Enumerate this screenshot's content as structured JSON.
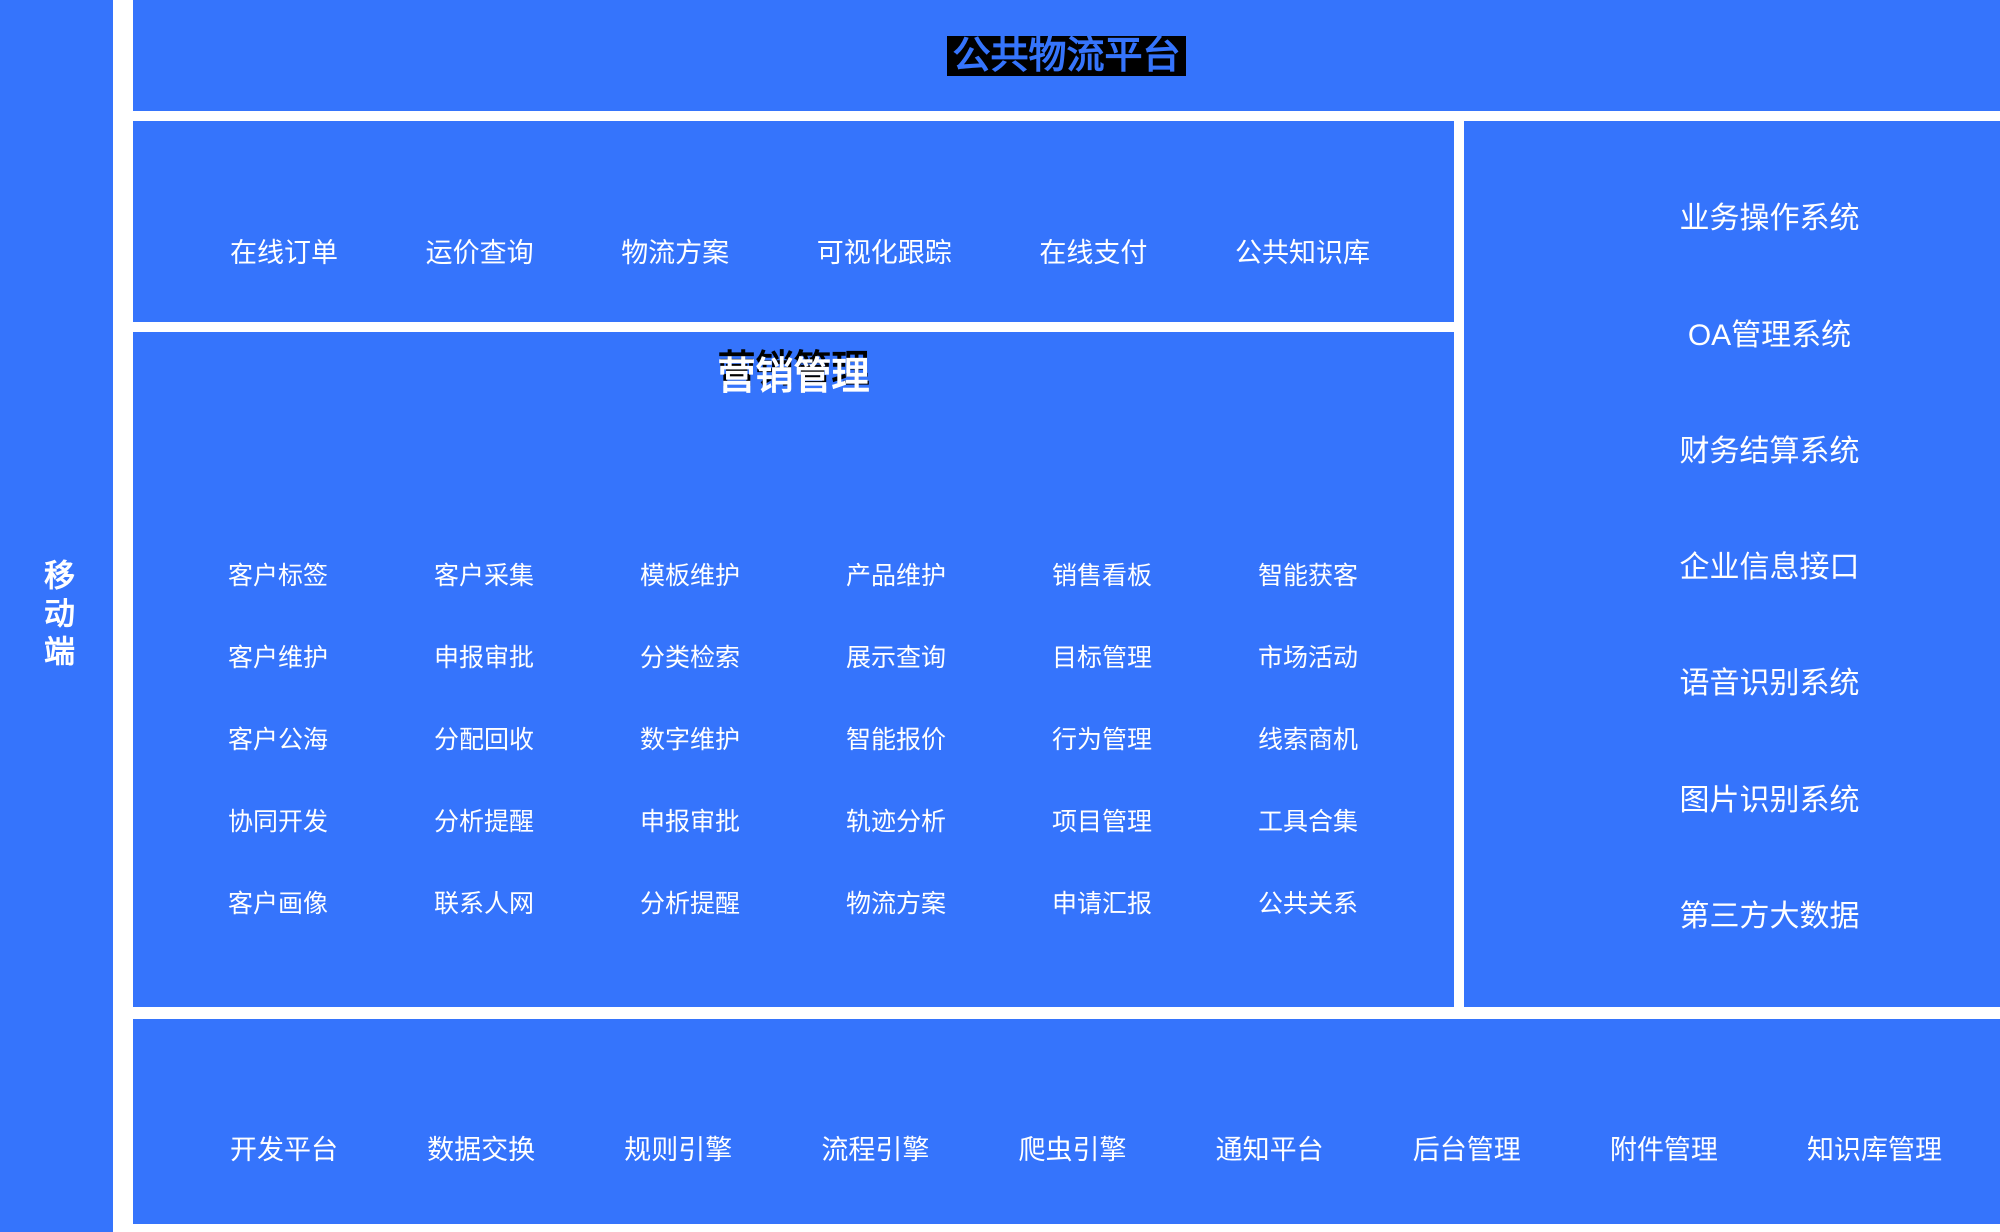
{
  "colors": {
    "panel_blue": "#3574fc",
    "page_background": "#ffffff",
    "top_title_background": "#000000",
    "text": "#ffffff",
    "marketing_title_shadow": "#000000"
  },
  "sidebar": {
    "label": "移动端"
  },
  "top_bar": {
    "title": "公共物流平台"
  },
  "services_row": {
    "items": [
      "在线订单",
      "运价查询",
      "物流方案",
      "可视化跟踪",
      "在线支付",
      "公共知识库"
    ]
  },
  "marketing_panel": {
    "title": "营销管理",
    "grid": [
      [
        "客户标签",
        "客户采集",
        "模板维护",
        "产品维护",
        "销售看板",
        "智能获客"
      ],
      [
        "客户维护",
        "申报审批",
        "分类检索",
        "展示查询",
        "目标管理",
        "市场活动"
      ],
      [
        "客户公海",
        "分配回收",
        "数字维护",
        "智能报价",
        "行为管理",
        "线索商机"
      ],
      [
        "协同开发",
        "分析提醒",
        "申报审批",
        "轨迹分析",
        "项目管理",
        "工具合集"
      ],
      [
        "客户画像",
        "联系人网",
        "分析提醒",
        "物流方案",
        "申请汇报",
        "公共关系"
      ]
    ]
  },
  "right_panel": {
    "items": [
      "业务操作系统",
      "OA管理系统",
      "财务结算系统",
      "企业信息接口",
      "语音识别系统",
      "图片识别系统",
      "第三方大数据"
    ]
  },
  "bottom_bar": {
    "items": [
      "开发平台",
      "数据交换",
      "规则引擎",
      "流程引擎",
      "爬虫引擎",
      "通知平台",
      "后台管理",
      "附件管理",
      "知识库管理"
    ]
  }
}
